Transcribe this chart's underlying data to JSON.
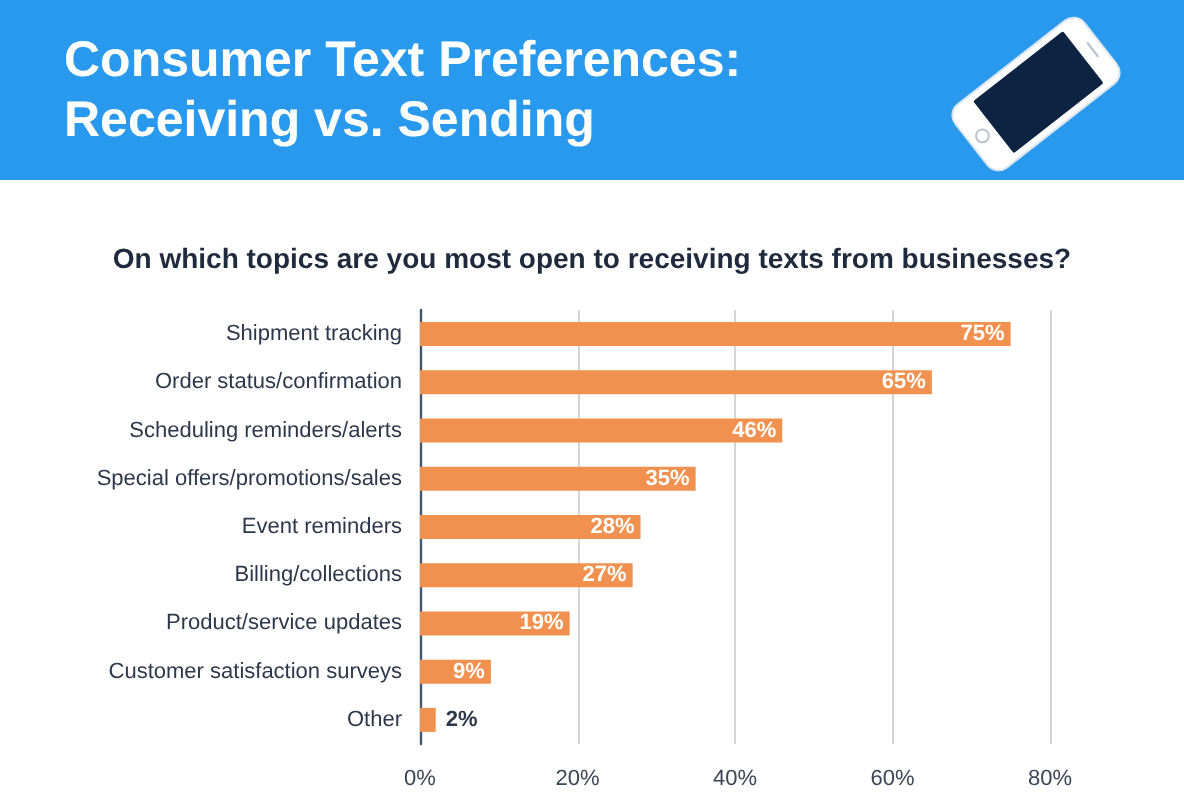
{
  "chart_data": {
    "type": "bar",
    "orientation": "horizontal",
    "title": "Consumer Text Preferences: Receiving vs. Sending",
    "subtitle": "On which topics are you most open to receiving texts from businesses?",
    "categories": [
      "Shipment tracking",
      "Order status/confirmation",
      "Scheduling reminders/alerts",
      "Special offers/promotions/sales",
      "Event reminders",
      "Billing/collections",
      "Product/service updates",
      "Customer satisfaction surveys",
      "Other"
    ],
    "values": [
      75,
      65,
      46,
      35,
      28,
      27,
      19,
      9,
      2
    ],
    "value_labels": [
      "75%",
      "65%",
      "46%",
      "35%",
      "28%",
      "27%",
      "19%",
      "9%",
      "2%"
    ],
    "color": "#f0914f",
    "xlim": [
      0,
      80
    ],
    "xticks": [
      {
        "value": 0,
        "label": "0%"
      },
      {
        "value": 20,
        "label": "20%"
      },
      {
        "value": 40,
        "label": "40%"
      },
      {
        "value": 60,
        "label": "60%"
      },
      {
        "value": 80,
        "label": "80%"
      }
    ],
    "grid": "x"
  }
}
